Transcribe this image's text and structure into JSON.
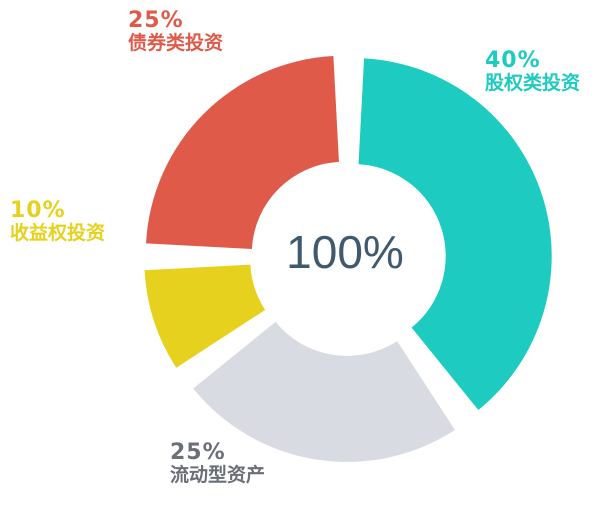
{
  "chart_data": {
    "type": "pie",
    "donut": true,
    "center_label": "100%",
    "slices": [
      {
        "label": "股权类投资",
        "value": 40,
        "value_label": "40%",
        "color": "#1ecbc0"
      },
      {
        "label": "流动型资产",
        "value": 25,
        "value_label": "25%",
        "color": "#d8dbe2",
        "text_color": "#6b6f78"
      },
      {
        "label": "收益权投资",
        "value": 10,
        "value_label": "10%",
        "color": "#e6d21e"
      },
      {
        "label": "债券类投资",
        "value": 25,
        "value_label": "25%",
        "color": "#e05a4a"
      }
    ]
  }
}
